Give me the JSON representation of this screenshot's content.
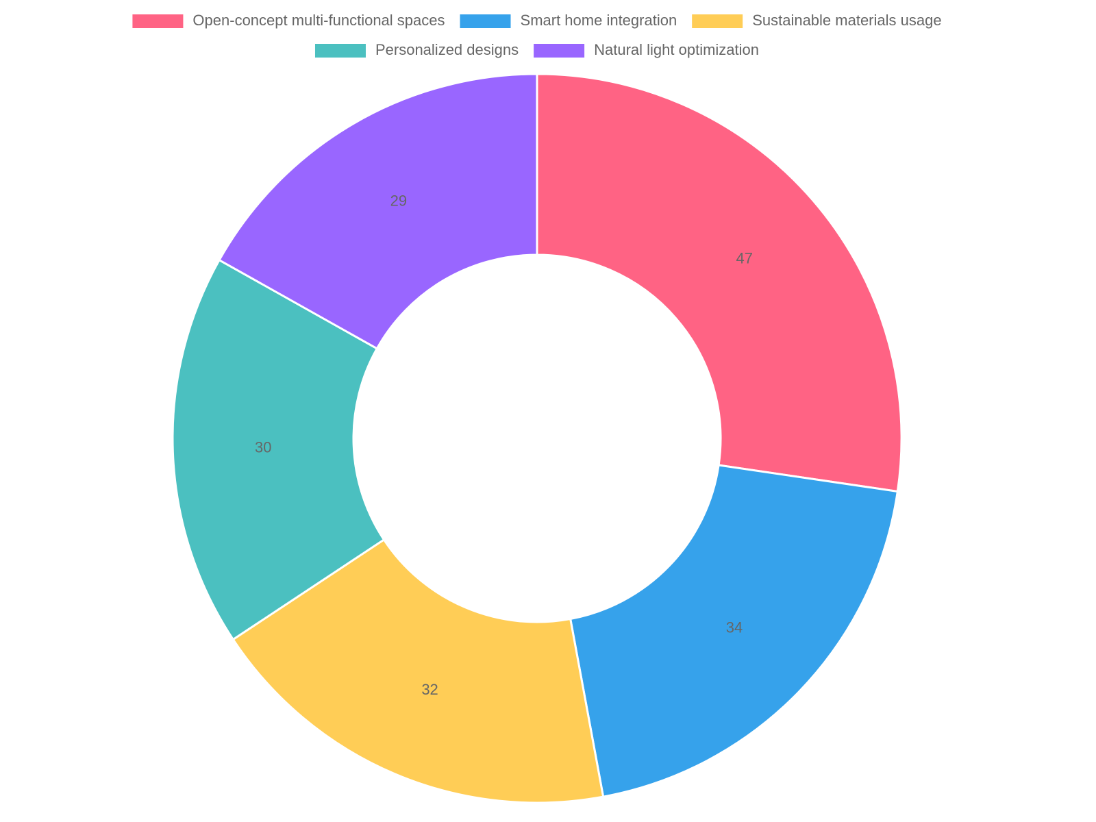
{
  "chart_data": {
    "type": "doughnut",
    "categories": [
      "Open-concept multi-functional spaces",
      "Smart home integration",
      "Sustainable materials usage",
      "Personalized designs",
      "Natural light optimization"
    ],
    "values": [
      47,
      34,
      32,
      30,
      29
    ],
    "colors": [
      "#ff6384",
      "#36a2eb",
      "#ffcd56",
      "#4bc0c0",
      "#9966ff"
    ],
    "legend": "top"
  }
}
